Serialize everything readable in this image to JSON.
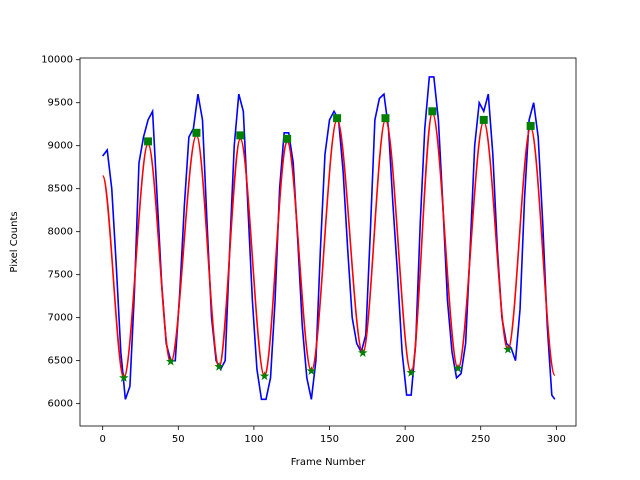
{
  "chart_data": {
    "type": "line",
    "x_label": "Frame Number",
    "y_label": "Pixel Counts",
    "xlim": [
      -15,
      313
    ],
    "ylim": [
      5740,
      10020
    ],
    "xticks": [
      0,
      50,
      100,
      150,
      200,
      250,
      300
    ],
    "yticks": [
      6000,
      6500,
      7000,
      7500,
      8000,
      8500,
      9000,
      9500,
      10000
    ],
    "series": [
      {
        "color": "#0000ff",
        "x": [
          0,
          3,
          6,
          9,
          12,
          15,
          18,
          21,
          24,
          27,
          30,
          33,
          36,
          39,
          42,
          45,
          48,
          51,
          54,
          57,
          60,
          63,
          66,
          69,
          72,
          75,
          78,
          81,
          84,
          87,
          90,
          93,
          96,
          99,
          102,
          105,
          108,
          111,
          114,
          117,
          120,
          123,
          126,
          129,
          132,
          135,
          138,
          141,
          144,
          147,
          150,
          153,
          156,
          159,
          162,
          165,
          168,
          171,
          174,
          177,
          180,
          183,
          186,
          189,
          192,
          195,
          198,
          201,
          204,
          207,
          210,
          213,
          216,
          219,
          222,
          225,
          228,
          231,
          234,
          237,
          240,
          243,
          246,
          249,
          252,
          255,
          258,
          261,
          264,
          267,
          270,
          273,
          276,
          279,
          282,
          285,
          288,
          291,
          294,
          297,
          299
        ],
        "values": [
          8880,
          8950,
          8500,
          7600,
          6600,
          6050,
          6200,
          7300,
          8800,
          9100,
          9300,
          9400,
          8400,
          7400,
          6700,
          6500,
          6500,
          7300,
          8300,
          9100,
          9200,
          9600,
          9300,
          8100,
          7000,
          6500,
          6400,
          6500,
          7800,
          9000,
          9600,
          9400,
          8300,
          7200,
          6400,
          6050,
          6050,
          6300,
          7200,
          8500,
          9150,
          9150,
          8800,
          7900,
          6900,
          6300,
          6050,
          6500,
          7800,
          8900,
          9300,
          9400,
          9300,
          8700,
          7800,
          7000,
          6700,
          6600,
          6800,
          8000,
          9300,
          9550,
          9600,
          9200,
          8300,
          7500,
          6600,
          6100,
          6100,
          6700,
          8100,
          9200,
          9800,
          9800,
          9300,
          8300,
          7200,
          6600,
          6300,
          6350,
          6700,
          7800,
          9000,
          9500,
          9400,
          9600,
          8900,
          7800,
          7000,
          6700,
          6650,
          6500,
          7100,
          8400,
          9300,
          9500,
          9100,
          8100,
          6900,
          6100,
          6050
        ]
      },
      {
        "color": "#ff0000",
        "smooth": true,
        "x": [
          0,
          14,
          30,
          45,
          62,
          77,
          91,
          107,
          122,
          138,
          155,
          172,
          187,
          204,
          218,
          235,
          252,
          268,
          283,
          299
        ],
        "values": [
          8650,
          6300,
          9020,
          6480,
          9120,
          6430,
          9080,
          6320,
          9050,
          6380,
          9300,
          6590,
          9300,
          6360,
          9380,
          6410,
          9280,
          6630,
          9210,
          6330
        ]
      },
      {
        "color": "#008000",
        "marker": "square",
        "x": [
          30,
          62,
          91,
          122,
          155,
          187,
          218,
          252,
          283
        ],
        "values": [
          9050,
          9150,
          9120,
          9080,
          9320,
          9320,
          9400,
          9300,
          9230
        ]
      },
      {
        "color": "#008000",
        "marker": "star",
        "x": [
          14,
          45,
          77,
          107,
          138,
          172,
          204,
          235,
          268
        ],
        "values": [
          6300,
          6490,
          6430,
          6320,
          6380,
          6590,
          6360,
          6410,
          6630
        ]
      }
    ]
  }
}
